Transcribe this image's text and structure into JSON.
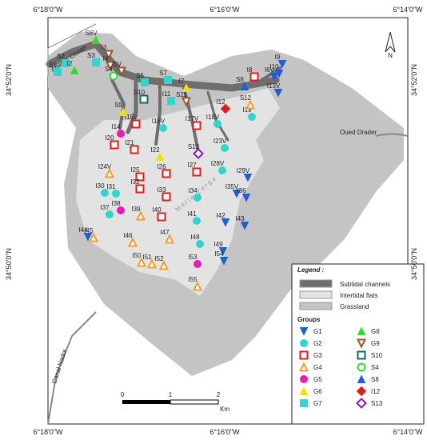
{
  "frame": {
    "top_ticks": [
      "6°18'0\"W",
      "6°16'0\"W",
      "6°14'0\"W"
    ],
    "bottom_ticks": [
      "6°18'0\"W",
      "6°16'0\"W",
      "6°14'0\"W"
    ],
    "left_ticks": [
      "34°52'0\"N",
      "34°50'0\"N"
    ],
    "right_ticks": [
      "34°52'0\"N",
      "34°50'0\"N"
    ]
  },
  "places": {
    "ocean": "Atlantic Ocean",
    "canal": "Canal Nador",
    "river": "Oued Drader",
    "lagoon": "Merja Zerga",
    "north": "N"
  },
  "scale": {
    "labels": [
      "0",
      "1",
      "2"
    ],
    "unit": "Km"
  },
  "legend": {
    "title": "Legend :",
    "areas": [
      {
        "label": "Subtidal channels",
        "color": "#6e6e6e"
      },
      {
        "label": "Intertidal flats",
        "color": "#e3e3e3"
      },
      {
        "label": "Grassland",
        "color": "#c4c4c4"
      }
    ],
    "groups_title": "Groups",
    "groups": [
      {
        "label": "G1",
        "color": "#1f5fd6",
        "stations": [
          "I9",
          "I10",
          "I6V",
          "I13V",
          "I29V",
          "I35V",
          "I36",
          "I42",
          "I43",
          "I44",
          "I49",
          "I54"
        ]
      },
      {
        "label": "G2",
        "color": "#2fd6d0",
        "stations": [
          "I19",
          "I18V",
          "I16V",
          "I23V",
          "I28V",
          "I30",
          "I31",
          "I34",
          "I37",
          "I41",
          "I48"
        ]
      },
      {
        "label": "G3",
        "color": "#e01b1b",
        "stations": [
          "I8",
          "I17V",
          "I15V",
          "I20",
          "I21",
          "I25",
          "I26",
          "I27",
          "I32",
          "I33",
          "I40"
        ]
      },
      {
        "label": "G4",
        "color": "#f0a030",
        "stations": [
          "I24V",
          "I39",
          "I45",
          "I46",
          "I47",
          "I50",
          "I51",
          "I52",
          "I55",
          "S12"
        ]
      },
      {
        "label": "G5",
        "color": "#e81ab8",
        "stations": [
          "I14",
          "I38",
          "I53"
        ]
      },
      {
        "label": "G6",
        "color": "#f2e200",
        "stations": [
          "S9",
          "I22",
          "I7"
        ]
      },
      {
        "label": "G7",
        "color": "#2fd6d0",
        "stations": [
          "S1",
          "S2",
          "S3",
          "S5",
          "S7",
          "I11"
        ]
      },
      {
        "label": "G8",
        "color": "#2edc2e",
        "stations": [
          "S6V",
          "I2"
        ]
      },
      {
        "label": "G9",
        "color": "#a0522d",
        "stations": [
          "I3",
          "I4",
          "I5V",
          "S11"
        ]
      },
      {
        "label": "S10",
        "color": "#0b6b62",
        "stations": [
          "S10"
        ]
      },
      {
        "label": "S4",
        "color": "#2edc2e",
        "stations": [
          "S4"
        ]
      },
      {
        "label": "S8",
        "color": "#1f5fd6",
        "stations": [
          "S8"
        ]
      },
      {
        "label": "I12",
        "color": "#e01b1b",
        "stations": [
          "I12"
        ]
      },
      {
        "label": "S13",
        "color": "#8a1ab8",
        "stations": [
          "S13"
        ]
      }
    ]
  }
}
